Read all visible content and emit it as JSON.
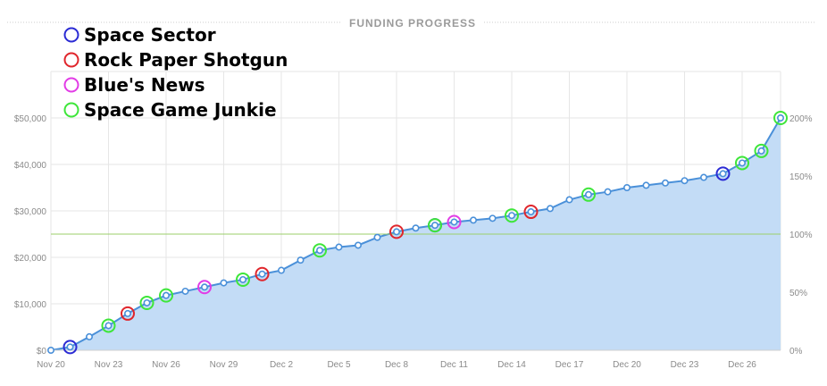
{
  "title": "FUNDING PROGRESS",
  "colors": {
    "fill": "#c3dcf6",
    "line": "#4a90d9",
    "grid": "#e6e6e6",
    "goal_line": "#9bcf6a",
    "point_stroke": "#4a90d9"
  },
  "legend": [
    {
      "name": "Space Sector",
      "color": "#2b2bd4"
    },
    {
      "name": "Rock Paper Shotgun",
      "color": "#e0262c"
    },
    {
      "name": "Blue's News",
      "color": "#e23ce6"
    },
    {
      "name": "Space Game Junkie",
      "color": "#3ee63a"
    }
  ],
  "chart_data": {
    "type": "area",
    "title": "FUNDING PROGRESS",
    "x_ticks": [
      "Nov 20",
      "Nov 23",
      "Nov 26",
      "Nov 29",
      "Dec 2",
      "Dec 5",
      "Dec 8",
      "Dec 11",
      "Dec 14",
      "Dec 17",
      "Dec 20",
      "Dec 23",
      "Dec 26"
    ],
    "y_left_ticks": [
      "$0",
      "$10,000",
      "$20,000",
      "$30,000",
      "$40,000",
      "$50,000"
    ],
    "y_right_ticks": [
      "0%",
      "50%",
      "100%",
      "150%",
      "200%"
    ],
    "ylim": [
      0,
      60000
    ],
    "goal": 25000,
    "grid": true,
    "legend_placement": "top-left",
    "series": [
      {
        "day_offset": [
          0,
          1,
          2,
          3,
          4,
          5,
          6,
          7,
          8,
          9,
          10,
          11,
          12,
          13,
          14,
          15,
          16,
          17,
          18,
          19,
          20,
          21,
          22,
          23,
          24,
          25,
          26,
          27,
          28,
          29,
          30,
          31,
          32,
          33,
          34,
          35,
          36,
          37,
          38
        ],
        "x": [
          "Nov 20",
          "Nov 21",
          "Nov 22",
          "Nov 23",
          "Nov 24",
          "Nov 25",
          "Nov 26",
          "Nov 27",
          "Nov 28",
          "Nov 29",
          "Nov 30",
          "Dec 1",
          "Dec 2",
          "Dec 3",
          "Dec 4",
          "Dec 5",
          "Dec 6",
          "Dec 7",
          "Dec 8",
          "Dec 9",
          "Dec 10",
          "Dec 11",
          "Dec 12",
          "Dec 13",
          "Dec 14",
          "Dec 15",
          "Dec 16",
          "Dec 17",
          "Dec 18",
          "Dec 19",
          "Dec 20",
          "Dec 21",
          "Dec 22",
          "Dec 23",
          "Dec 24",
          "Dec 25",
          "Dec 26",
          "Dec 27",
          "Dec 28"
        ],
        "values": [
          0,
          700,
          2900,
          5300,
          7900,
          10200,
          11800,
          12700,
          13600,
          14500,
          15200,
          16400,
          17200,
          19400,
          21500,
          22200,
          22600,
          24300,
          25500,
          26300,
          26900,
          27600,
          28000,
          28400,
          29000,
          29800,
          30500,
          32400,
          33500,
          34100,
          35000,
          35500,
          36000,
          36500,
          37200,
          38000,
          40300,
          42900,
          50000
        ]
      }
    ],
    "highlights": [
      {
        "x": "Nov 21",
        "source": "Space Sector"
      },
      {
        "x": "Nov 23",
        "source": "Space Game Junkie"
      },
      {
        "x": "Nov 24",
        "source": "Rock Paper Shotgun"
      },
      {
        "x": "Nov 25",
        "source": "Space Game Junkie"
      },
      {
        "x": "Nov 26",
        "source": "Space Game Junkie"
      },
      {
        "x": "Nov 28",
        "source": "Blue's News"
      },
      {
        "x": "Nov 30",
        "source": "Space Game Junkie"
      },
      {
        "x": "Dec 1",
        "source": "Rock Paper Shotgun"
      },
      {
        "x": "Dec 4",
        "source": "Space Game Junkie"
      },
      {
        "x": "Dec 8",
        "source": "Rock Paper Shotgun"
      },
      {
        "x": "Dec 10",
        "source": "Space Sector"
      },
      {
        "x": "Dec 10",
        "source": "Space Game Junkie"
      },
      {
        "x": "Dec 11",
        "source": "Blue's News"
      },
      {
        "x": "Dec 14",
        "source": "Space Game Junkie"
      },
      {
        "x": "Dec 15",
        "source": "Rock Paper Shotgun"
      },
      {
        "x": "Dec 18",
        "source": "Space Game Junkie"
      },
      {
        "x": "Dec 25",
        "source": "Space Sector"
      },
      {
        "x": "Dec 26",
        "source": "Space Game Junkie"
      },
      {
        "x": "Dec 27",
        "source": "Space Game Junkie"
      },
      {
        "x": "Dec 28",
        "source": "Space Game Junkie"
      }
    ]
  }
}
